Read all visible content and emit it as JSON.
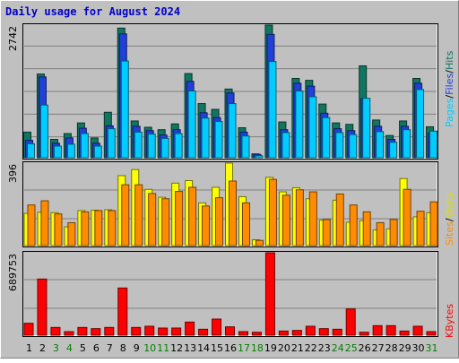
{
  "chart_data": [
    {
      "type": "bar",
      "panel": "hits-files-pages",
      "title": "Daily usage for August 2024",
      "ymax_label": "2742",
      "ymax": 2742,
      "categories": [
        "1",
        "2",
        "3",
        "4",
        "5",
        "6",
        "7",
        "8",
        "9",
        "10",
        "11",
        "12",
        "13",
        "14",
        "15",
        "16",
        "17",
        "18",
        "19",
        "20",
        "21",
        "22",
        "23",
        "24",
        "25",
        "26",
        "27",
        "28",
        "29",
        "30",
        "31"
      ],
      "weekend_days": [
        "3",
        "4",
        "10",
        "11",
        "17",
        "18",
        "24",
        "25",
        "31"
      ],
      "legend": [
        "Pages",
        "/",
        "Files",
        "/",
        "Hits"
      ],
      "series": [
        {
          "name": "Hits",
          "color": "#127560",
          "values": [
            530,
            1730,
            380,
            500,
            720,
            410,
            940,
            2680,
            760,
            630,
            580,
            700,
            1740,
            1120,
            1000,
            1420,
            620,
            80,
            2742,
            740,
            1640,
            1600,
            1110,
            720,
            690,
            1900,
            780,
            460,
            760,
            1640,
            640
          ]
        },
        {
          "name": "Files",
          "color": "#2040d8",
          "values": [
            360,
            1670,
            300,
            410,
            610,
            300,
            660,
            2560,
            650,
            560,
            470,
            580,
            1580,
            930,
            830,
            1340,
            530,
            70,
            2550,
            580,
            1540,
            1480,
            920,
            600,
            560,
            1220,
            650,
            380,
            650,
            1540,
            510
          ]
        },
        {
          "name": "Pages",
          "color": "#00ccff",
          "values": [
            290,
            1090,
            240,
            280,
            500,
            240,
            600,
            2000,
            530,
            490,
            400,
            500,
            1380,
            820,
            750,
            1120,
            450,
            40,
            1990,
            520,
            1380,
            1260,
            830,
            520,
            480,
            1230,
            540,
            320,
            580,
            1410,
            550
          ]
        }
      ]
    },
    {
      "type": "bar",
      "panel": "visits-sites",
      "ymax_label": "396",
      "ymax": 396,
      "legend": [
        "Sites",
        "/",
        "Visits"
      ],
      "series": [
        {
          "name": "Visits",
          "color": "#ffff00",
          "values": [
            155,
            160,
            158,
            90,
            168,
            170,
            172,
            336,
            365,
            270,
            232,
            300,
            312,
            205,
            280,
            396,
            235,
            28,
            328,
            258,
            278,
            225,
            122,
            218,
            112,
            120,
            75,
            80,
            322,
            138,
            158
          ]
        },
        {
          "name": "Sites",
          "color": "#ff8c00",
          "values": [
            195,
            215,
            152,
            110,
            162,
            168,
            168,
            292,
            292,
            250,
            225,
            260,
            280,
            190,
            230,
            310,
            205,
            25,
            318,
            242,
            268,
            258,
            125,
            248,
            195,
            162,
            110,
            125,
            270,
            165,
            210
          ]
        }
      ]
    },
    {
      "type": "bar",
      "panel": "kbytes",
      "ymax_label": "689753",
      "ymax": 689753,
      "legend": [
        "KBytes"
      ],
      "series": [
        {
          "name": "KBytes",
          "color": "#ff0000",
          "values": [
            100000,
            470000,
            65000,
            30000,
            65000,
            55000,
            65000,
            395000,
            65000,
            75000,
            60000,
            60000,
            110000,
            50000,
            135000,
            70000,
            30000,
            25000,
            689753,
            35000,
            40000,
            75000,
            55000,
            50000,
            220000,
            25000,
            80000,
            80000,
            35000,
            75000,
            30000
          ]
        }
      ]
    }
  ],
  "colors": {
    "background": "#c0c0c0",
    "frame_light": "#ffffff",
    "frame_dark": "#808080",
    "weekday_label": "#000000",
    "weekend_label": "#007f00",
    "title": "#0000cc"
  }
}
